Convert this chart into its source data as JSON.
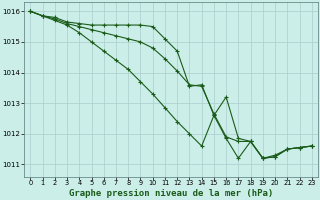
{
  "background_color": "#cceee8",
  "grid_color": "#aacccc",
  "line_color": "#1a5c1a",
  "marker_color": "#1a5c1a",
  "title": "Graphe pression niveau de la mer (hPa)",
  "title_fontsize": 6.5,
  "xlim": [
    -0.5,
    23.5
  ],
  "ylim": [
    1010.6,
    1016.3
  ],
  "yticks": [
    1011,
    1012,
    1013,
    1014,
    1015,
    1016
  ],
  "xticks": [
    0,
    1,
    2,
    3,
    4,
    5,
    6,
    7,
    8,
    9,
    10,
    11,
    12,
    13,
    14,
    15,
    16,
    17,
    18,
    19,
    20,
    21,
    22,
    23
  ],
  "series": [
    [
      1016.0,
      1015.85,
      1015.8,
      1015.65,
      1015.6,
      1015.55,
      1015.55,
      1015.55,
      1015.55,
      1015.55,
      1015.5,
      1015.1,
      1014.7,
      1013.55,
      1013.6,
      1012.6,
      1013.2,
      1011.85,
      1011.75,
      1011.2,
      1011.25,
      1011.5,
      1011.55,
      1011.6
    ],
    [
      1016.0,
      1015.85,
      1015.75,
      1015.6,
      1015.5,
      1015.4,
      1015.3,
      1015.2,
      1015.1,
      1015.0,
      1014.8,
      1014.45,
      1014.05,
      1013.6,
      1013.55,
      1012.65,
      1011.9,
      1011.75,
      1011.75,
      1011.2,
      1011.3,
      1011.5,
      1011.55,
      1011.6
    ],
    [
      1016.0,
      1015.85,
      1015.7,
      1015.55,
      1015.3,
      1015.0,
      1014.7,
      1014.4,
      1014.1,
      1013.7,
      1013.3,
      1012.85,
      1012.4,
      1012.0,
      1011.6,
      1012.6,
      1011.85,
      1011.2,
      1011.75,
      1011.2,
      1011.25,
      1011.5,
      1011.55,
      1011.6
    ]
  ]
}
